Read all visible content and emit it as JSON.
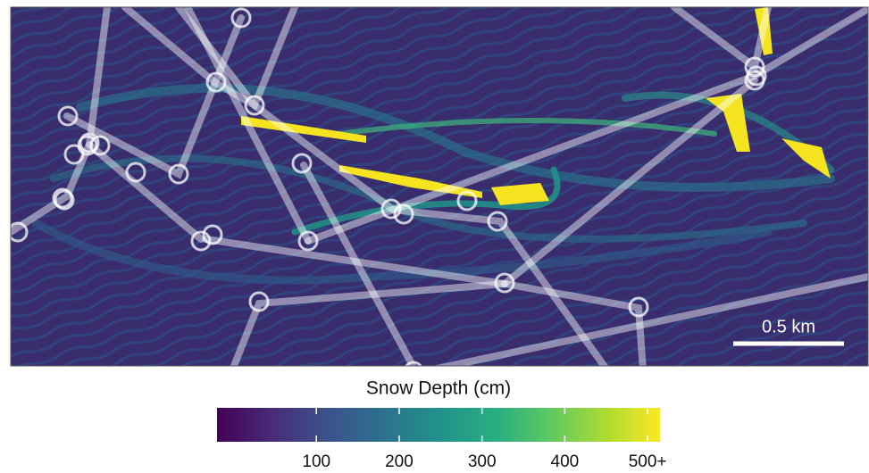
{
  "legend": {
    "title": "Snow Depth (cm)",
    "range": [
      -20,
      515
    ],
    "ticks": [
      100,
      200,
      300,
      400,
      {
        "value": 500,
        "label": "500+"
      }
    ]
  },
  "scale_bar": {
    "label": "0.5 km"
  }
}
